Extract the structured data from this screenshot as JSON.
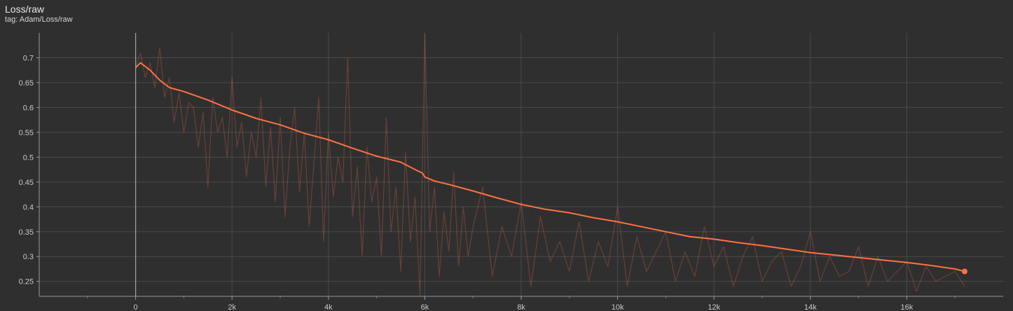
{
  "card": {
    "title": "Loss/raw",
    "tag": "tag: Adam/Loss/raw"
  },
  "chart_data": {
    "type": "line",
    "title": "Loss/raw",
    "xlabel": "",
    "ylabel": "",
    "xlim": [
      -2000,
      18000
    ],
    "ylim": [
      0.22,
      0.75
    ],
    "x_ticks": [
      0,
      2000,
      4000,
      6000,
      8000,
      10000,
      12000,
      14000,
      16000
    ],
    "x_tick_labels": [
      "0",
      "2k",
      "4k",
      "6k",
      "8k",
      "10k",
      "12k",
      "14k",
      "16k"
    ],
    "y_ticks": [
      0.25,
      0.3,
      0.35,
      0.4,
      0.45,
      0.5,
      0.55,
      0.6,
      0.65,
      0.7
    ],
    "y_tick_labels": [
      "0.25",
      "0.3",
      "0.35",
      "0.4",
      "0.45",
      "0.5",
      "0.55",
      "0.6",
      "0.65",
      "0.7"
    ],
    "grid": true,
    "series": [
      {
        "role": "smoothed",
        "color": "#ff7043",
        "x": [
          0,
          100,
          300,
          500,
          700,
          1000,
          1500,
          2000,
          2500,
          3000,
          3500,
          4000,
          4500,
          5000,
          5500,
          5800,
          5950,
          6000,
          6200,
          6500,
          7000,
          7500,
          8000,
          8500,
          9000,
          9500,
          10000,
          10500,
          11000,
          11500,
          12000,
          12500,
          13000,
          13500,
          14000,
          14500,
          15000,
          15500,
          16000,
          16500,
          17000,
          17200
        ],
        "y": [
          0.68,
          0.69,
          0.675,
          0.655,
          0.64,
          0.632,
          0.615,
          0.595,
          0.578,
          0.565,
          0.548,
          0.535,
          0.518,
          0.502,
          0.49,
          0.475,
          0.468,
          0.46,
          0.452,
          0.445,
          0.432,
          0.418,
          0.405,
          0.395,
          0.388,
          0.378,
          0.37,
          0.36,
          0.35,
          0.34,
          0.335,
          0.328,
          0.322,
          0.315,
          0.308,
          0.303,
          0.298,
          0.293,
          0.288,
          0.282,
          0.275,
          0.27
        ]
      },
      {
        "role": "raw",
        "color": "#ff7043",
        "x": [
          0,
          100,
          200,
          300,
          400,
          500,
          600,
          700,
          800,
          900,
          1000,
          1100,
          1200,
          1300,
          1400,
          1500,
          1600,
          1700,
          1800,
          1900,
          2000,
          2100,
          2200,
          2300,
          2400,
          2500,
          2600,
          2700,
          2800,
          2900,
          3000,
          3100,
          3200,
          3300,
          3400,
          3500,
          3600,
          3700,
          3800,
          3900,
          4000,
          4100,
          4200,
          4300,
          4400,
          4500,
          4600,
          4700,
          4800,
          4900,
          5000,
          5100,
          5200,
          5300,
          5400,
          5500,
          5600,
          5700,
          5800,
          5900,
          6000,
          6100,
          6200,
          6300,
          6400,
          6500,
          6600,
          6700,
          6800,
          6900,
          7000,
          7200,
          7400,
          7600,
          7800,
          8000,
          8200,
          8400,
          8600,
          8800,
          9000,
          9200,
          9400,
          9600,
          9800,
          10000,
          10200,
          10400,
          10600,
          10800,
          11000,
          11200,
          11400,
          11600,
          11800,
          12000,
          12200,
          12400,
          12600,
          12800,
          13000,
          13200,
          13400,
          13600,
          13800,
          14000,
          14200,
          14400,
          14600,
          14800,
          15000,
          15200,
          15400,
          15600,
          15800,
          16000,
          16200,
          16400,
          16600,
          16800,
          17000,
          17200
        ],
        "y": [
          0.68,
          0.71,
          0.66,
          0.69,
          0.64,
          0.72,
          0.62,
          0.66,
          0.57,
          0.63,
          0.55,
          0.61,
          0.6,
          0.52,
          0.59,
          0.44,
          0.62,
          0.55,
          0.58,
          0.5,
          0.66,
          0.52,
          0.57,
          0.46,
          0.55,
          0.5,
          0.62,
          0.44,
          0.56,
          0.41,
          0.58,
          0.38,
          0.52,
          0.6,
          0.43,
          0.55,
          0.36,
          0.49,
          0.62,
          0.33,
          0.55,
          0.42,
          0.5,
          0.45,
          0.7,
          0.38,
          0.48,
          0.3,
          0.52,
          0.41,
          0.46,
          0.3,
          0.58,
          0.35,
          0.44,
          0.27,
          0.51,
          0.33,
          0.42,
          0.22,
          0.75,
          0.35,
          0.44,
          0.26,
          0.39,
          0.31,
          0.47,
          0.28,
          0.4,
          0.3,
          0.36,
          0.44,
          0.26,
          0.36,
          0.3,
          0.41,
          0.24,
          0.38,
          0.29,
          0.33,
          0.27,
          0.37,
          0.25,
          0.33,
          0.28,
          0.4,
          0.24,
          0.34,
          0.27,
          0.31,
          0.35,
          0.25,
          0.31,
          0.26,
          0.36,
          0.28,
          0.32,
          0.24,
          0.3,
          0.34,
          0.25,
          0.29,
          0.31,
          0.24,
          0.28,
          0.35,
          0.25,
          0.3,
          0.26,
          0.27,
          0.32,
          0.24,
          0.3,
          0.25,
          0.27,
          0.29,
          0.23,
          0.28,
          0.25,
          0.26,
          0.27,
          0.24
        ]
      }
    ]
  }
}
